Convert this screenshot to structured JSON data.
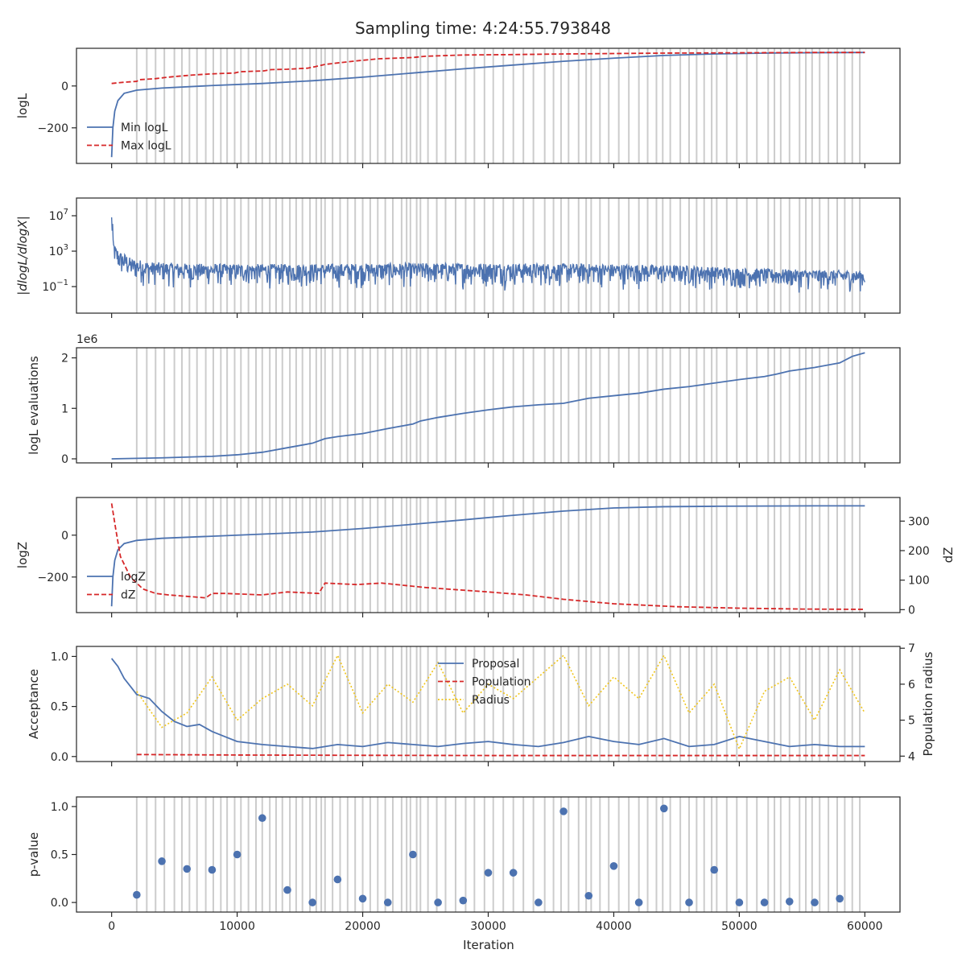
{
  "figure": {
    "title": "Sampling time: 4:24:55.793848",
    "shared_xlabel": "Iteration",
    "shared_xticks": [
      0,
      10000,
      20000,
      30000,
      40000,
      50000,
      60000
    ],
    "xlim": [
      -2800,
      62800
    ]
  },
  "colors": {
    "blue": "#4c72b0",
    "red": "#d62728",
    "yellow": "#f0c419",
    "vline": "#cccccc",
    "axis": "#262626"
  },
  "region_marker_iterations": [
    2000,
    2800,
    3500,
    4200,
    5000,
    5600,
    6200,
    6800,
    7500,
    8100,
    8700,
    9200,
    9800,
    10300,
    10900,
    11500,
    12000,
    12600,
    13100,
    13600,
    14200,
    14700,
    15200,
    15800,
    16300,
    16700,
    17000,
    17600,
    18200,
    18800,
    19400,
    20000,
    20600,
    21200,
    21800,
    22400,
    23100,
    23500,
    23800,
    24300,
    24600,
    25200,
    25900,
    26600,
    27400,
    28200,
    28900,
    29700,
    30400,
    31200,
    32000,
    32800,
    33600,
    34500,
    35200,
    35800,
    36400,
    37200,
    37800,
    38200,
    38900,
    39600,
    40400,
    41200,
    42000,
    42700,
    43400,
    43900,
    44500,
    45300,
    46000,
    46600,
    47200,
    47800,
    48200,
    49000,
    49800,
    50600,
    51400,
    52300,
    52800,
    53300,
    54000,
    54800,
    55300,
    55800,
    56400,
    57100,
    57800,
    58400,
    59000,
    59600
  ],
  "chart_data": [
    {
      "id": "logl",
      "type": "line",
      "ylabel": "logL",
      "ylim": [
        -370,
        180
      ],
      "yticks": [
        {
          "v": 0,
          "label": "0"
        },
        {
          "v": -200,
          "label": "−200"
        }
      ],
      "legend": "lower-left",
      "series": [
        {
          "name": "Min logL",
          "style": "solid",
          "color": "#4c72b0",
          "x": [
            0,
            100,
            250,
            500,
            1000,
            2000,
            4000,
            8000,
            12000,
            16000,
            20000,
            24000,
            28000,
            32000,
            36000,
            40000,
            44000,
            48000,
            52000,
            56000,
            60000
          ],
          "y": [
            -340,
            -200,
            -120,
            -70,
            -35,
            -20,
            -10,
            2,
            12,
            25,
            42,
            62,
            82,
            100,
            118,
            133,
            146,
            153,
            157,
            159,
            160
          ]
        },
        {
          "name": "Max logL",
          "style": "dashed",
          "color": "#d62728",
          "x": [
            0,
            1000,
            2000,
            2200,
            3500,
            4200,
            5000,
            6400,
            8000,
            9800,
            10200,
            12100,
            12700,
            14000,
            15600,
            16200,
            17000,
            18000,
            19500,
            21300,
            24000,
            25000,
            28000,
            32000,
            36000,
            40000,
            44000,
            48000,
            52000,
            56000,
            60000
          ],
          "y": [
            12,
            18,
            22,
            30,
            35,
            40,
            45,
            52,
            58,
            62,
            68,
            72,
            78,
            80,
            85,
            92,
            103,
            110,
            120,
            130,
            136,
            142,
            148,
            150,
            153,
            155,
            157,
            158,
            159,
            160,
            160
          ]
        }
      ]
    },
    {
      "id": "dlogl",
      "type": "line",
      "ylabel": "|dlogL/dlogX|",
      "yscale": "log",
      "ylim": [
        0.0001,
        1000000000
      ],
      "yticks": [
        {
          "v": 10000000,
          "label": "10^7"
        },
        {
          "v": 1000,
          "label": "10^3"
        },
        {
          "v": 0.1,
          "label": "10^-1"
        }
      ],
      "series": [
        {
          "name": "",
          "style": "noisy-band",
          "color": "#4c72b0",
          "x": [
            0,
            100,
            300,
            700,
            1500,
            3000,
            6000,
            10000,
            15000,
            20000,
            25000,
            30000,
            35000,
            40000,
            45000,
            50000,
            55000,
            60000
          ],
          "y_top": [
            50000000,
            20000,
            3000,
            800,
            150,
            60,
            40,
            35,
            35,
            40,
            45,
            45,
            40,
            35,
            25,
            12,
            8,
            6
          ],
          "y_bottom": [
            20,
            3,
            0.3,
            0.08,
            0.04,
            0.03,
            0.02,
            0.02,
            0.02,
            0.02,
            0.02,
            0.02,
            0.02,
            0.02,
            0.02,
            0.015,
            0.01,
            0.01
          ]
        }
      ]
    },
    {
      "id": "evals",
      "type": "line",
      "ylabel": "logL evaluations",
      "offset_label": "1e6",
      "ylim": [
        -0.08,
        2.2
      ],
      "yticks": [
        {
          "v": 0,
          "label": "0"
        },
        {
          "v": 1,
          "label": "1"
        },
        {
          "v": 2,
          "label": "2"
        }
      ],
      "series": [
        {
          "name": "",
          "style": "solid",
          "color": "#4c72b0",
          "x": [
            0,
            4000,
            8000,
            10000,
            12000,
            14000,
            16000,
            17000,
            18000,
            20000,
            22000,
            24000,
            24600,
            26000,
            28000,
            30000,
            32000,
            34000,
            36000,
            38000,
            40000,
            42000,
            44000,
            46000,
            48000,
            50000,
            52000,
            53000,
            54000,
            56000,
            58000,
            59000,
            60000
          ],
          "y": [
            0.0,
            0.02,
            0.05,
            0.08,
            0.13,
            0.22,
            0.31,
            0.4,
            0.44,
            0.5,
            0.6,
            0.69,
            0.75,
            0.82,
            0.9,
            0.97,
            1.03,
            1.07,
            1.1,
            1.2,
            1.25,
            1.3,
            1.38,
            1.43,
            1.5,
            1.57,
            1.63,
            1.68,
            1.74,
            1.81,
            1.9,
            2.03,
            2.1
          ]
        }
      ]
    },
    {
      "id": "logz",
      "type": "line",
      "ylabel": "logZ",
      "ylabel_right": "dZ",
      "ylim": [
        -370,
        180
      ],
      "ylim_right": [
        -10,
        380
      ],
      "yticks": [
        {
          "v": 0,
          "label": "0"
        },
        {
          "v": -200,
          "label": "−200"
        }
      ],
      "yticks_right": [
        0,
        100,
        200,
        300
      ],
      "legend": "lower-left",
      "series": [
        {
          "name": "logZ",
          "style": "solid",
          "color": "#4c72b0",
          "axis": "left",
          "x": [
            0,
            100,
            250,
            500,
            1000,
            2000,
            4000,
            8000,
            12000,
            16000,
            20000,
            24000,
            28000,
            32000,
            36000,
            40000,
            44000,
            48000,
            52000,
            56000,
            60000
          ],
          "y": [
            -340,
            -200,
            -120,
            -70,
            -40,
            -25,
            -15,
            -5,
            5,
            15,
            32,
            52,
            73,
            95,
            115,
            130,
            136,
            138,
            139,
            140,
            140
          ]
        },
        {
          "name": "dZ",
          "style": "dashed",
          "color": "#d62728",
          "axis": "right",
          "x": [
            0,
            300,
            700,
            1500,
            2500,
            3500,
            4500,
            6000,
            7500,
            8000,
            9000,
            12000,
            14000,
            16500,
            17000,
            19500,
            21500,
            25000,
            30000,
            33000,
            36000,
            40000,
            45000,
            50000,
            55000,
            60000
          ],
          "y": [
            360,
            280,
            180,
            110,
            70,
            55,
            50,
            45,
            40,
            55,
            55,
            50,
            60,
            55,
            90,
            85,
            90,
            75,
            60,
            50,
            35,
            20,
            10,
            5,
            2,
            1
          ]
        }
      ]
    },
    {
      "id": "acceptance",
      "type": "line",
      "ylabel": "Acceptance",
      "ylabel_right": "Population radius",
      "ylim": [
        -0.05,
        1.1
      ],
      "ylim_right": [
        3.85,
        7.05
      ],
      "yticks": [
        {
          "v": 0,
          "label": "0.0"
        },
        {
          "v": 0.5,
          "label": "0.5"
        },
        {
          "v": 1,
          "label": "1.0"
        }
      ],
      "yticks_right": [
        4,
        5,
        6,
        7
      ],
      "legend": "upper-center",
      "series": [
        {
          "name": "Proposal",
          "style": "solid",
          "color": "#4c72b0",
          "axis": "left",
          "x": [
            0,
            500,
            1000,
            1500,
            2000,
            3000,
            4000,
            5000,
            6000,
            7000,
            8000,
            9000,
            10000,
            12000,
            14000,
            16000,
            18000,
            20000,
            22000,
            24000,
            26000,
            28000,
            30000,
            32000,
            34000,
            36000,
            38000,
            40000,
            42000,
            44000,
            46000,
            48000,
            50000,
            52000,
            54000,
            56000,
            58000,
            60000
          ],
          "y": [
            0.98,
            0.9,
            0.78,
            0.7,
            0.62,
            0.58,
            0.45,
            0.35,
            0.3,
            0.32,
            0.25,
            0.2,
            0.15,
            0.12,
            0.1,
            0.08,
            0.12,
            0.1,
            0.14,
            0.12,
            0.1,
            0.13,
            0.15,
            0.12,
            0.1,
            0.14,
            0.2,
            0.15,
            0.12,
            0.18,
            0.1,
            0.12,
            0.2,
            0.15,
            0.1,
            0.12,
            0.1,
            0.1
          ]
        },
        {
          "name": "Population",
          "style": "dashed",
          "color": "#d62728",
          "axis": "left",
          "x": [
            2000,
            10000,
            20000,
            30000,
            40000,
            50000,
            60000
          ],
          "y": [
            0.02,
            0.015,
            0.012,
            0.01,
            0.01,
            0.01,
            0.01
          ]
        },
        {
          "name": "Radius",
          "style": "dotted",
          "color": "#f0c419",
          "axis": "right",
          "x": [
            2000,
            4000,
            6000,
            8000,
            10000,
            12000,
            14000,
            16000,
            18000,
            20000,
            22000,
            24000,
            26000,
            28000,
            30000,
            32000,
            34000,
            36000,
            38000,
            40000,
            42000,
            44000,
            46000,
            48000,
            50000,
            52000,
            54000,
            56000,
            58000,
            60000
          ],
          "y": [
            5.8,
            4.8,
            5.2,
            6.2,
            5.0,
            5.6,
            6.0,
            5.4,
            6.8,
            5.2,
            6.0,
            5.5,
            6.6,
            5.2,
            6.0,
            5.6,
            6.2,
            6.8,
            5.4,
            6.2,
            5.6,
            6.8,
            5.2,
            6.0,
            4.2,
            5.8,
            6.2,
            5.0,
            6.4,
            5.2
          ]
        }
      ]
    },
    {
      "id": "pvalue",
      "type": "scatter",
      "ylabel": "p-value",
      "xlabel": "Iteration",
      "ylim": [
        -0.1,
        1.1
      ],
      "yticks": [
        {
          "v": 0,
          "label": "0.0"
        },
        {
          "v": 0.5,
          "label": "0.5"
        },
        {
          "v": 1,
          "label": "1.0"
        }
      ],
      "series": [
        {
          "name": "",
          "color": "#4c72b0",
          "x": [
            2000,
            4000,
            6000,
            8000,
            10000,
            12000,
            14000,
            16000,
            18000,
            20000,
            22000,
            24000,
            26000,
            28000,
            30000,
            32000,
            34000,
            36000,
            38000,
            40000,
            42000,
            44000,
            46000,
            48000,
            50000,
            52000,
            54000,
            56000,
            58000
          ],
          "y": [
            0.08,
            0.43,
            0.35,
            0.34,
            0.5,
            0.88,
            0.13,
            0.0,
            0.24,
            0.04,
            0.0,
            0.5,
            0.0,
            0.02,
            0.31,
            0.31,
            0.0,
            0.95,
            0.07,
            0.38,
            0.0,
            0.98,
            0.0,
            0.34,
            0.0,
            0.0,
            0.01,
            0.0,
            0.04
          ]
        }
      ]
    }
  ]
}
